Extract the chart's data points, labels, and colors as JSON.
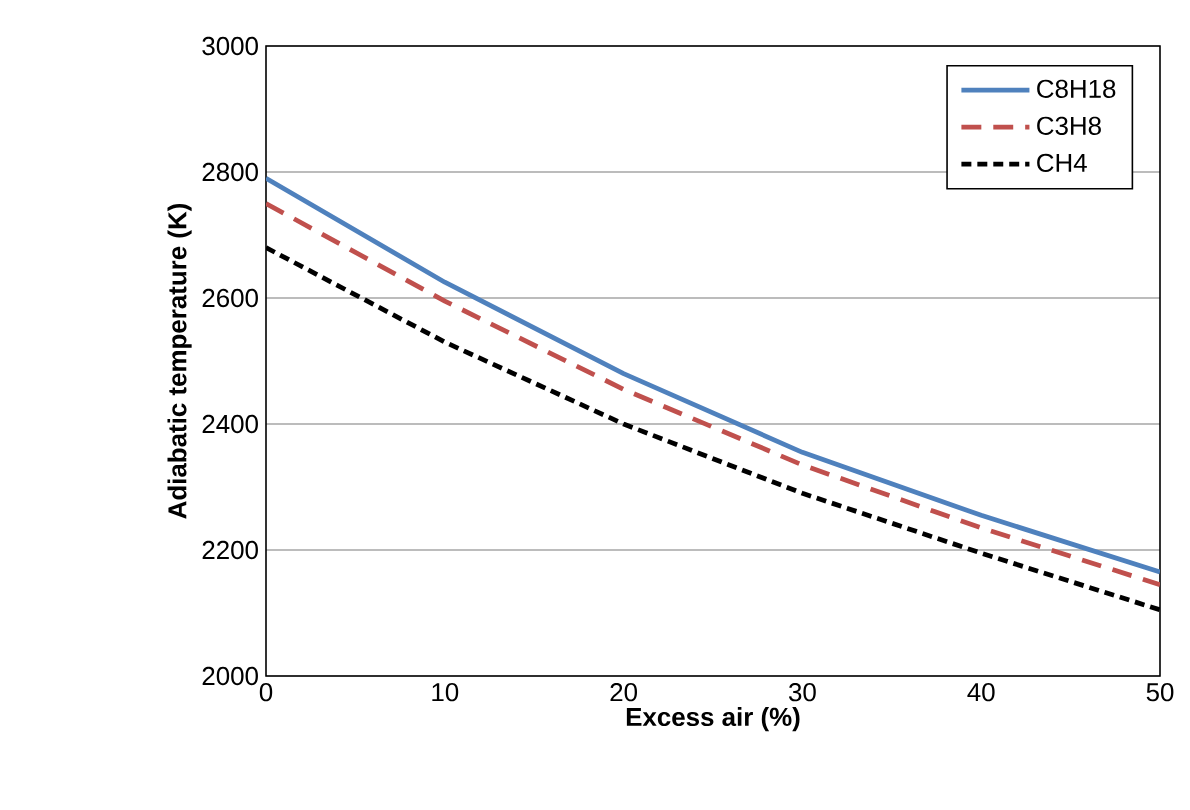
{
  "chart_data": {
    "type": "line",
    "xlabel": "Excess air (%)",
    "ylabel": "Adiabatic temperature (K)",
    "x": [
      0,
      10,
      20,
      30,
      40,
      50
    ],
    "series": [
      {
        "name": "C8H18",
        "color": "#4f81bd",
        "line_style": "solid",
        "values": [
          2790,
          2625,
          2480,
          2355,
          2255,
          2165
        ]
      },
      {
        "name": "C3H8",
        "color": "#c0504d",
        "line_style": "dashed",
        "values": [
          2750,
          2595,
          2455,
          2335,
          2235,
          2145
        ]
      },
      {
        "name": "CH4",
        "color": "#000000",
        "line_style": "dotted",
        "values": [
          2680,
          2530,
          2400,
          2290,
          2195,
          2105
        ]
      }
    ],
    "xlim": [
      0,
      50
    ],
    "ylim": [
      2000,
      3000
    ],
    "xticks": [
      0,
      10,
      20,
      30,
      40,
      50
    ],
    "yticks": [
      2000,
      2200,
      2400,
      2600,
      2800,
      3000
    ],
    "grid": "y",
    "legend": "top right",
    "marker": "none"
  }
}
